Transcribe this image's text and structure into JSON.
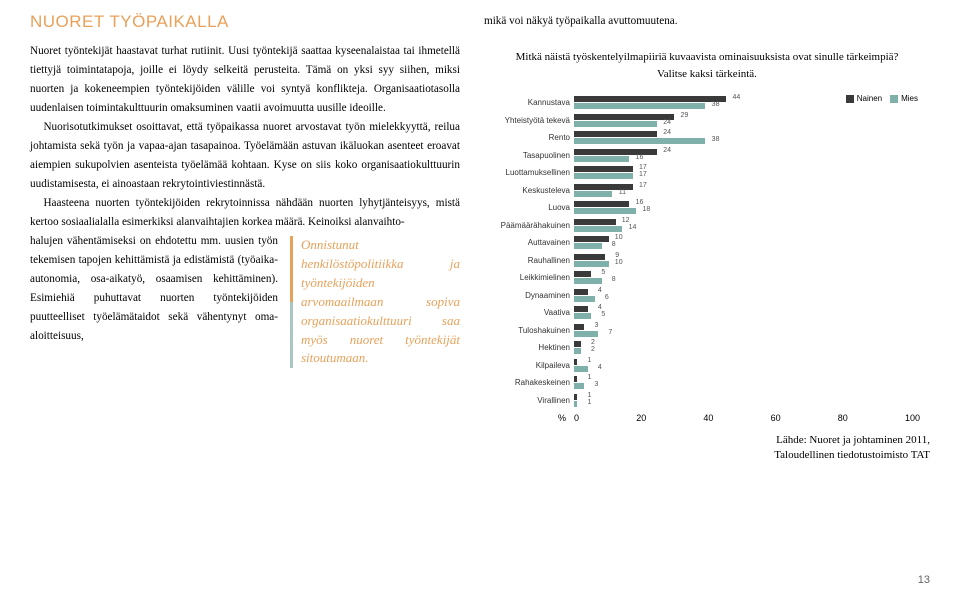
{
  "title": "NUORET TYÖPAIKALLA",
  "paragraphs": {
    "p1": "Nuoret työntekijät haastavat turhat rutiinit. Uusi työntekijä saattaa kyseenalaistaa tai ihmetellä tiettyjä toimintatapoja, joille ei löydy selkeitä perusteita. Tämä on yksi syy siihen, miksi nuorten ja kokeneempien työntekijöiden välille voi syntyä konflikteja. Organisaatiotasolla uudenlaisen toimintakulttuurin omaksuminen vaatii avoimuutta uusille ideoille.",
    "p2": "Nuorisotutkimukset osoittavat, että työpaikassa nuoret arvostavat työn mielekkyyttä, reilua johtamista sekä työn ja vapaa-ajan tasapainoa. Työelämään astuvan ikäluokan asenteet eroavat aiempien sukupolvien asenteista työelämää kohtaan. Kyse on siis koko organisaatiokulttuurin uudistamisesta, ei ainoastaan rekrytointiviestinnästä.",
    "p3a": "Haasteena nuorten työntekijöiden rekrytoinnissa nähdään nuorten lyhytjänteisyys, mistä kertoo sosiaalialalla esimerkiksi alanvaihtajien korkea määrä. Keinoiksi alanvaihto",
    "p3b": "halujen vähentämiseksi on ehdotettu mm. uusien työn tekemisen tapojen kehittämistä ja edistämistä (työaika-autonomia, osa-aikatyö, osaamisen kehittäminen). Esimiehiä puhuttavat nuorten työntekijöiden puutteelliset työelämätaidot sekä vähentynyt oma-aloitteisuus,",
    "right_top": "mikä voi näkyä työpaikalla avuttomuutena."
  },
  "pull_quote": "Onnistunut henkilöstöpolitiikka ja työntekijöiden arvomaailmaan sopiva organisaatiokulttuuri saa myös nuoret työntekijät sitoutumaan.",
  "chart": {
    "title": "Mitkä näistä työskentelyilmapiiriä kuvaavista ominaisuuksista ovat sinulle tärkeimpiä? Valitse kaksi tärkeintä.",
    "legend": {
      "f": "Nainen",
      "m": "Mies"
    },
    "colors": {
      "f": "#3a3a3a",
      "m": "#7fb0aa"
    },
    "xmax": 100,
    "xticks": [
      0,
      20,
      40,
      60,
      80,
      100
    ],
    "pct_label": "%",
    "categories": [
      {
        "label": "Kannustava",
        "f": 44,
        "m": 38
      },
      {
        "label": "Yhteistyötä tekevä",
        "f": 29,
        "m": 24
      },
      {
        "label": "Rento",
        "f": 24,
        "m": 38
      },
      {
        "label": "Tasapuolinen",
        "f": 24,
        "m": 16
      },
      {
        "label": "Luottamuksellinen",
        "f": 17,
        "m": 17
      },
      {
        "label": "Keskusteleva",
        "f": 17,
        "m": 11
      },
      {
        "label": "Luova",
        "f": 16,
        "m": 18
      },
      {
        "label": "Päämäärähakuinen",
        "f": 12,
        "m": 14
      },
      {
        "label": "Auttavainen",
        "f": 10,
        "m": 8
      },
      {
        "label": "Rauhallinen",
        "f": 9,
        "m": 10
      },
      {
        "label": "Leikkimielinen",
        "f": 5,
        "m": 8
      },
      {
        "label": "Dynaaminen",
        "f": 4,
        "m": 6
      },
      {
        "label": "Vaativa",
        "f": 4,
        "m": 5
      },
      {
        "label": "Tuloshakuinen",
        "f": 3,
        "m": 7
      },
      {
        "label": "Hektinen",
        "f": 2,
        "m": 2
      },
      {
        "label": "Kilpaileva",
        "f": 1,
        "m": 4
      },
      {
        "label": "Rahakeskeinen",
        "f": 1,
        "m": 3
      },
      {
        "label": "Virallinen",
        "f": 1,
        "m": 1
      }
    ],
    "source_line1": "Lähde: Nuoret ja johtaminen 2011,",
    "source_line2": "Taloudellinen tiedotustoimisto TAT"
  },
  "page_number": "13"
}
